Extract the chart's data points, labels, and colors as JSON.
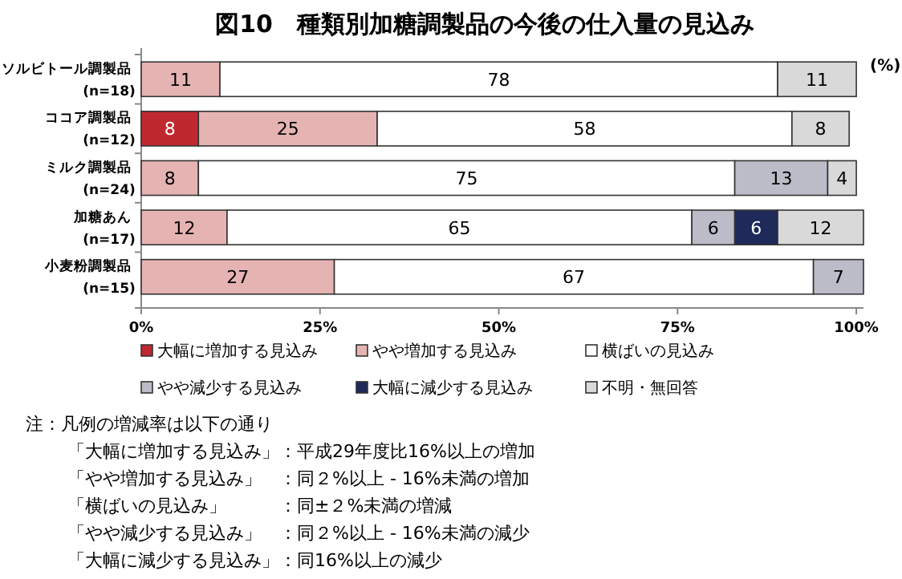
{
  "chart_data": {
    "type": "bar",
    "orientation": "horizontal",
    "stacked": true,
    "title": "図10　種類別加糖調製品の今後の仕入量の見込み",
    "categories": [
      "ソルビトール調製品\n(n=18)",
      "ココア調製品\n(n=12)",
      "ミルク調製品\n(n=24)",
      "加糖あん\n(n=17)",
      "小麦粉調製品\n(n=15)"
    ],
    "series": [
      {
        "name": "大幅に増加する見込み",
        "color": "#c0282f",
        "values": [
          null,
          8,
          null,
          null,
          null
        ]
      },
      {
        "name": "やや増加する見込み",
        "color": "#e6b3b3",
        "values": [
          11,
          25,
          8,
          12,
          27
        ]
      },
      {
        "name": "横ばいの見込み",
        "color": "#ffffff",
        "values": [
          78,
          58,
          75,
          65,
          67
        ]
      },
      {
        "name": "やや減少する見込み",
        "color": "#bcbcc8",
        "values": [
          null,
          null,
          13,
          6,
          7
        ]
      },
      {
        "name": "大幅に減少する見込み",
        "color": "#1f2a5a",
        "values": [
          null,
          null,
          null,
          6,
          null
        ]
      },
      {
        "name": "不明・無回答",
        "color": "#d9d9d9",
        "values": [
          11,
          8,
          4,
          12,
          null
        ]
      }
    ],
    "xlim": [
      0,
      101
    ],
    "xticks": [
      {
        "value": 0,
        "label": "0%"
      },
      {
        "value": 25,
        "label": "25%"
      },
      {
        "value": 50,
        "label": "50%"
      },
      {
        "value": 75,
        "label": "75%"
      },
      {
        "value": 100,
        "label": "100%"
      }
    ],
    "data_labels": true,
    "legend": "bottom",
    "grid": false,
    "annotations": [
      "(%)",
      "注：凡例の増減率は以下の通り",
      "「大幅に増加する見込み」：平成29年度比16%以上の増加",
      "「やや増加する見込み」　：同２%以上 - 16%未満の増加",
      "「横ばいの見込み」　　　：同±２%未満の増減",
      "「やや減少する見込み」　：同２%以上 - 16%未満の減少",
      "「大幅に減少する見込み」：同16%以上の減少"
    ]
  }
}
